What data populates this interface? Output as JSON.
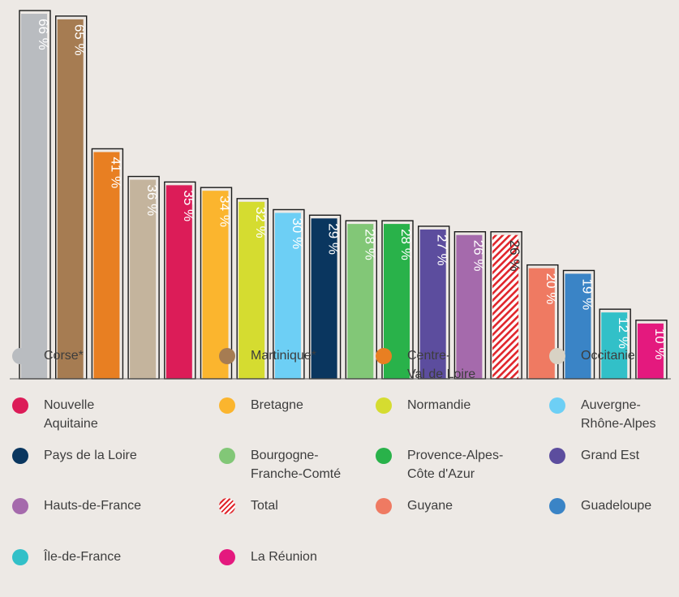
{
  "chart_data": {
    "type": "bar",
    "ylim": [
      0,
      70
    ],
    "categories": [
      "Corse*",
      "Martinique*",
      "Centre-Val de Loire",
      "Occitanie",
      "Nouvelle Aquitaine",
      "Bretagne",
      "Normandie",
      "Auvergne-Rhône-Alpes",
      "Pays de la Loire",
      "Bourgogne-Franche-Comté",
      "Provence-Alpes-Côte d'Azur",
      "Grand Est",
      "Hauts-de-France",
      "Total",
      "Guyane",
      "Guadeloupe",
      "Île-de-France",
      "La Réunion"
    ],
    "values": [
      66,
      65,
      41,
      36,
      35,
      34,
      32,
      30,
      29,
      28,
      28,
      27,
      26,
      26,
      20,
      19,
      12,
      10
    ],
    "data_labels": [
      "66 %",
      "65 %",
      "41 %",
      "36 %",
      "35 %",
      "34 %",
      "32 %",
      "30 %",
      "29 %",
      "28 %",
      "28 %",
      "27 %",
      "26 %",
      "26 %",
      "20 %",
      "19 %",
      "12 %",
      "10 %"
    ],
    "colors": [
      "#b9bcc0",
      "#a67c52",
      "#e87f22",
      "#c4b49d",
      "#dc1c58",
      "#fbb52e",
      "#d5dc30",
      "#6dcff5",
      "#0a365f",
      "#82c777",
      "#29b24a",
      "#5c4d9e",
      "#a56aac",
      "#e0252b",
      "#ef7a62",
      "#3a84c6",
      "#32c0c8",
      "#e4197e"
    ],
    "hatched": [
      false,
      false,
      false,
      false,
      false,
      false,
      false,
      false,
      false,
      false,
      false,
      false,
      false,
      true,
      false,
      false,
      false,
      false
    ],
    "grid": false
  },
  "legend": [
    {
      "label": "Corse*",
      "color": "#b9bcc0"
    },
    {
      "label": "Martinique*",
      "color": "#a67c52"
    },
    {
      "label": "Centre-\nVal de Loire",
      "color": "#e87f22"
    },
    {
      "label": "Occitanie",
      "color": "#d8d2c4"
    },
    {
      "label": "Nouvelle\nAquitaine",
      "color": "#dc1c58"
    },
    {
      "label": "Bretagne",
      "color": "#fbb52e"
    },
    {
      "label": "Normandie",
      "color": "#d5dc30"
    },
    {
      "label": "Auvergne-\nRhône-Alpes",
      "color": "#6dcff5"
    },
    {
      "label": "Pays de la Loire",
      "color": "#0a365f"
    },
    {
      "label": "Bourgogne-\nFranche-Comté",
      "color": "#82c777"
    },
    {
      "label": "Provence-Alpes-\nCôte d'Azur",
      "color": "#29b24a"
    },
    {
      "label": "Grand Est",
      "color": "#5c4d9e"
    },
    {
      "label": "Hauts-de-France",
      "color": "#a56aac"
    },
    {
      "label": "Total",
      "color": "#e0252b",
      "hatched": true
    },
    {
      "label": "Guyane",
      "color": "#ef7a62"
    },
    {
      "label": "Guadeloupe",
      "color": "#3a84c6"
    },
    {
      "label": "Île-de-France",
      "color": "#32c0c8"
    },
    {
      "label": "La Réunion",
      "color": "#e4197e"
    }
  ]
}
